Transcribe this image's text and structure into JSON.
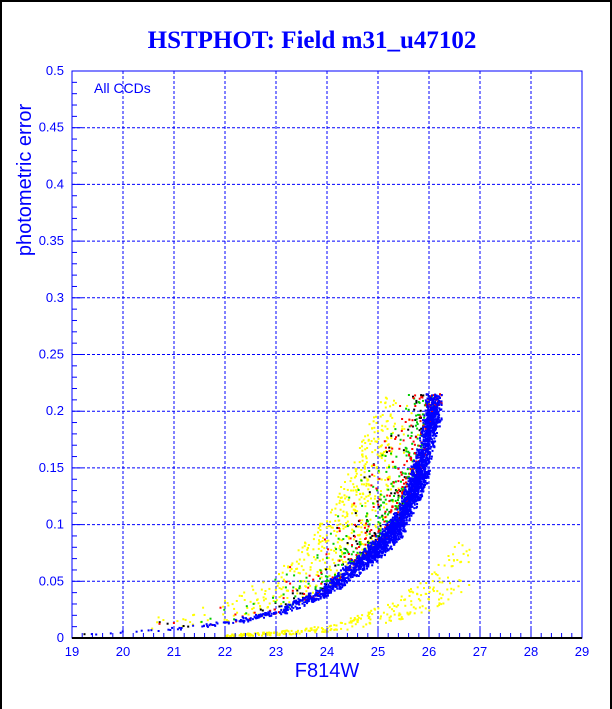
{
  "chart_data": {
    "type": "scatter",
    "title": "HSTPHOT: Field m31_u47102",
    "xlabel": "F814W",
    "ylabel": "photometric error",
    "annotation": "All CCDs",
    "xlim": [
      19,
      29
    ],
    "ylim": [
      0,
      0.5
    ],
    "xticks": [
      "19",
      "20",
      "21",
      "22",
      "23",
      "24",
      "25",
      "26",
      "27",
      "28",
      "29"
    ],
    "yticks": [
      "0",
      "0.05",
      "0.1",
      "0.15",
      "0.2",
      "0.25",
      "0.3",
      "0.35",
      "0.4",
      "0.45",
      "0.5"
    ],
    "grid": true,
    "error_cutoff": 0.215,
    "main_locus": {
      "x": [
        19.2,
        20,
        21,
        22,
        23,
        24,
        24.5,
        25,
        25.4,
        25.85,
        26.05,
        26.15
      ],
      "y": [
        0.003,
        0.005,
        0.008,
        0.013,
        0.022,
        0.042,
        0.06,
        0.08,
        0.1,
        0.15,
        0.2,
        0.215
      ]
    },
    "faint_branch": {
      "x": [
        22,
        23,
        24,
        24.5,
        25,
        25.5,
        26,
        26.5
      ],
      "y": [
        0.002,
        0.004,
        0.008,
        0.013,
        0.02,
        0.028,
        0.04,
        0.06
      ]
    },
    "series": [
      {
        "name": "blue",
        "color": "#0000ff",
        "count": 2600,
        "population": "main locus"
      },
      {
        "name": "red",
        "color": "#ff0000",
        "count": 500,
        "population": "locus edge and scatter"
      },
      {
        "name": "green",
        "color": "#00cc00",
        "count": 350,
        "population": "scatter above locus"
      },
      {
        "name": "black",
        "color": "#000000",
        "count": 150,
        "population": "scatter above locus"
      },
      {
        "name": "yellow",
        "color": "#ffff00",
        "count": 900,
        "population": "wide scatter and faint branch"
      }
    ]
  }
}
